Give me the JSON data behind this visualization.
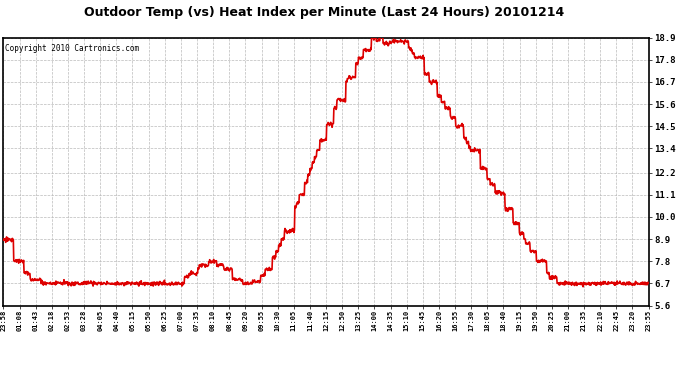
{
  "title": "Outdoor Temp (vs) Heat Index per Minute (Last 24 Hours) 20101214",
  "copyright_text": "Copyright 2010 Cartronics.com",
  "line_color": "#dd0000",
  "background_color": "#ffffff",
  "grid_color": "#bbbbbb",
  "y_min": 5.6,
  "y_max": 18.9,
  "y_ticks": [
    5.6,
    6.7,
    7.8,
    8.9,
    10.0,
    11.1,
    12.2,
    13.4,
    14.5,
    15.6,
    16.7,
    17.8,
    18.9
  ],
  "x_labels": [
    "23:58",
    "01:08",
    "01:43",
    "02:18",
    "02:53",
    "03:28",
    "04:05",
    "04:40",
    "05:15",
    "05:50",
    "06:25",
    "07:00",
    "07:35",
    "08:10",
    "08:45",
    "09:20",
    "09:55",
    "10:30",
    "11:05",
    "11:40",
    "12:15",
    "12:50",
    "13:25",
    "14:00",
    "14:35",
    "15:10",
    "15:45",
    "16:20",
    "16:55",
    "17:30",
    "18:05",
    "18:40",
    "19:15",
    "19:50",
    "20:25",
    "21:00",
    "21:35",
    "22:10",
    "22:45",
    "23:20",
    "23:55"
  ],
  "line_width": 1.2
}
